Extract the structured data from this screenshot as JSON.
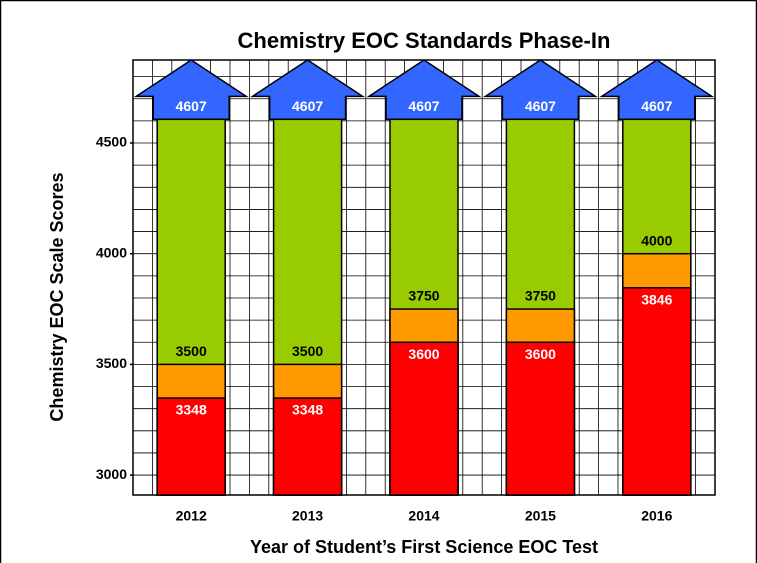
{
  "chart_data": {
    "type": "layered_bar",
    "title": "Chemistry EOC Standards Phase-In",
    "ylabel": "Chemistry  EOC Scale Scores",
    "xlabel": "Year of Student’s First Science EOC Test",
    "categories": [
      "2012",
      "2013",
      "2014",
      "2015",
      "2016"
    ],
    "series": [
      {
        "color": "#99cc00",
        "values": [
          4607,
          4607,
          4607,
          4607,
          4607
        ]
      },
      {
        "color": "#ff9900",
        "values": [
          3500,
          3500,
          3750,
          3750,
          4000
        ]
      },
      {
        "color": "#ff0000",
        "values": [
          3348,
          3348,
          3600,
          3600,
          3846
        ]
      }
    ],
    "arrow_color": "#3366ff",
    "ylim": [
      2910,
      4875
    ],
    "yticks": [
      3000,
      3500,
      4000,
      4500
    ],
    "ygrid": [
      3000,
      3100,
      3200,
      3300,
      3400,
      3500,
      3600,
      3700,
      3800,
      3900,
      4000,
      4100,
      4200,
      4300,
      4400,
      4500,
      4600,
      4700,
      4800
    ],
    "grid": true
  }
}
